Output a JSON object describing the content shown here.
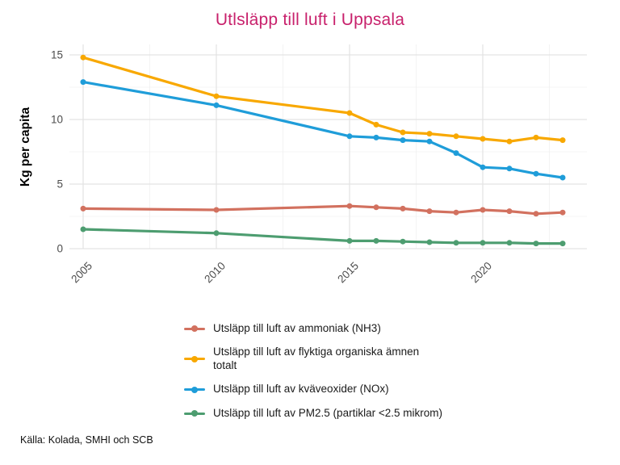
{
  "source_note": "Källa: Kolada, SMHI och SCB",
  "style": {
    "title_color": "#C8216C",
    "axis_text_color": "#4D4D4D",
    "grid_major_color": "#E3E3E3",
    "grid_minor_color": "#F0F0F0",
    "background": "#FFFFFF"
  },
  "chart_data": {
    "type": "line",
    "title": "Utlsläpp till luft i Uppsala",
    "xlabel": "",
    "ylabel": "Kg per capita",
    "x": [
      2005,
      2010,
      2015,
      2016,
      2017,
      2018,
      2019,
      2020,
      2021,
      2022,
      2023
    ],
    "series": [
      {
        "name": "Utsläpp till luft av ammoniak (NH3)",
        "color": "#D2715F",
        "values": [
          3.1,
          3.0,
          3.3,
          3.2,
          3.1,
          2.9,
          2.8,
          3.0,
          2.9,
          2.7,
          2.8
        ]
      },
      {
        "name": "Utsläpp till luft av flyktiga organiska ämnen\ntotalt",
        "color": "#F8A800",
        "values": [
          14.8,
          11.8,
          10.5,
          9.6,
          9.0,
          8.9,
          8.7,
          8.5,
          8.3,
          8.6,
          8.4
        ]
      },
      {
        "name": "Utsläpp till luft av kväveoxider (NOx)",
        "color": "#1F9DD9",
        "values": [
          12.9,
          11.1,
          8.7,
          8.6,
          8.4,
          8.3,
          7.4,
          6.3,
          6.2,
          5.8,
          5.5
        ]
      },
      {
        "name": "Utsläpp till luft av PM2.5 (partiklar <2.5 mikrom)",
        "color": "#4D9D70",
        "values": [
          1.5,
          1.2,
          0.6,
          0.6,
          0.55,
          0.5,
          0.45,
          0.45,
          0.45,
          0.4,
          0.4
        ]
      }
    ],
    "ylim": [
      0,
      15
    ],
    "yticks": [
      0,
      5,
      10,
      15
    ],
    "xticks": [
      2005,
      2010,
      2015,
      2020
    ],
    "grid": true,
    "minor_grid": true,
    "legend_position": "bottom-left"
  }
}
